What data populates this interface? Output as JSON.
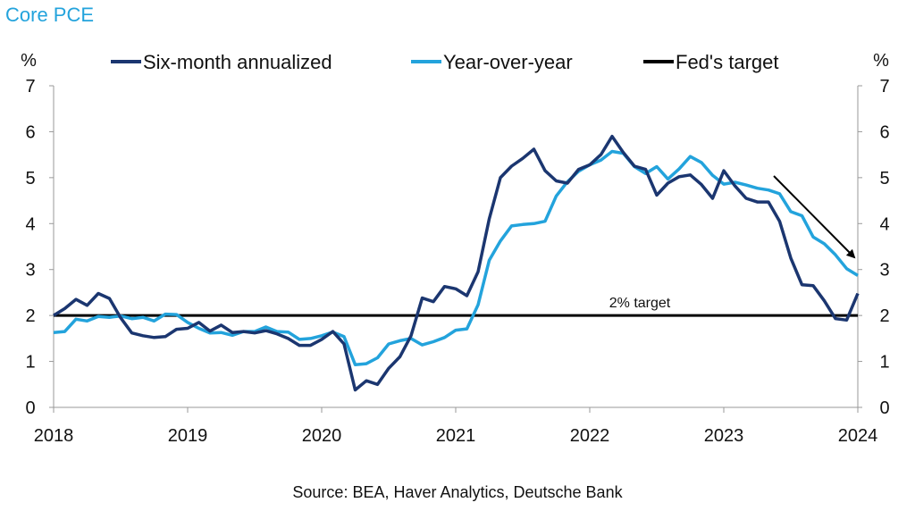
{
  "chart_data": {
    "type": "line",
    "title": "Core PCE",
    "ylabel_left": "%",
    "ylabel_right": "%",
    "ylim": [
      0,
      7
    ],
    "yticks": [
      "0",
      "1",
      "2",
      "3",
      "4",
      "5",
      "6",
      "7"
    ],
    "xlim": [
      "2018-01",
      "2024-01"
    ],
    "xticks": [
      "2018",
      "2019",
      "2020",
      "2021",
      "2022",
      "2023",
      "2024"
    ],
    "legend_placement": "top",
    "grid": false,
    "annotation": "2% target",
    "source": "Source: BEA, Haver Analytics, Deutsche Bank",
    "months": [
      "2018-01",
      "2018-02",
      "2018-03",
      "2018-04",
      "2018-05",
      "2018-06",
      "2018-07",
      "2018-08",
      "2018-09",
      "2018-10",
      "2018-11",
      "2018-12",
      "2019-01",
      "2019-02",
      "2019-03",
      "2019-04",
      "2019-05",
      "2019-06",
      "2019-07",
      "2019-08",
      "2019-09",
      "2019-10",
      "2019-11",
      "2019-12",
      "2020-01",
      "2020-02",
      "2020-03",
      "2020-04",
      "2020-05",
      "2020-06",
      "2020-07",
      "2020-08",
      "2020-09",
      "2020-10",
      "2020-11",
      "2020-12",
      "2021-01",
      "2021-02",
      "2021-03",
      "2021-04",
      "2021-05",
      "2021-06",
      "2021-07",
      "2021-08",
      "2021-09",
      "2021-10",
      "2021-11",
      "2021-12",
      "2022-01",
      "2022-02",
      "2022-03",
      "2022-04",
      "2022-05",
      "2022-06",
      "2022-07",
      "2022-08",
      "2022-09",
      "2022-10",
      "2022-11",
      "2022-12",
      "2023-01",
      "2023-02",
      "2023-03",
      "2023-04",
      "2023-05",
      "2023-06",
      "2023-07",
      "2023-08",
      "2023-09",
      "2023-10",
      "2023-11",
      "2023-12",
      "2024-01"
    ],
    "series": [
      {
        "name": "Six-month annualized",
        "color": "#1b3670",
        "values": [
          2.0,
          2.15,
          2.35,
          2.22,
          2.48,
          2.37,
          1.95,
          1.62,
          1.56,
          1.52,
          1.54,
          1.7,
          1.72,
          1.85,
          1.66,
          1.79,
          1.63,
          1.65,
          1.62,
          1.67,
          1.6,
          1.5,
          1.35,
          1.35,
          1.48,
          1.65,
          1.38,
          0.38,
          0.58,
          0.5,
          0.85,
          1.1,
          1.56,
          2.38,
          2.3,
          2.63,
          2.58,
          2.43,
          2.95,
          4.1,
          5.0,
          5.25,
          5.42,
          5.62,
          5.15,
          4.93,
          4.88,
          5.18,
          5.28,
          5.5,
          5.9,
          5.55,
          5.25,
          5.18,
          4.62,
          4.88,
          5.02,
          5.06,
          4.85,
          4.55,
          5.15,
          4.82,
          4.55,
          4.47,
          4.47,
          4.05,
          3.25,
          2.67,
          2.65,
          2.32,
          1.93,
          1.9,
          2.48
        ]
      },
      {
        "name": "Year-over-year",
        "color": "#23a3dc",
        "values": [
          1.63,
          1.65,
          1.92,
          1.88,
          1.98,
          1.96,
          1.99,
          1.93,
          1.96,
          1.88,
          2.03,
          2.02,
          1.85,
          1.72,
          1.62,
          1.63,
          1.57,
          1.65,
          1.65,
          1.75,
          1.65,
          1.64,
          1.48,
          1.5,
          1.56,
          1.64,
          1.54,
          0.93,
          0.95,
          1.08,
          1.38,
          1.45,
          1.5,
          1.36,
          1.43,
          1.52,
          1.68,
          1.71,
          2.23,
          3.2,
          3.62,
          3.95,
          3.98,
          4.0,
          4.05,
          4.6,
          4.91,
          5.14,
          5.28,
          5.38,
          5.57,
          5.53,
          5.24,
          5.09,
          5.24,
          4.97,
          5.19,
          5.46,
          5.33,
          5.05,
          4.86,
          4.9,
          4.84,
          4.77,
          4.73,
          4.65,
          4.26,
          4.17,
          3.71,
          3.56,
          3.32,
          3.02,
          2.87
        ]
      },
      {
        "name": "Fed's target",
        "color": "#000000",
        "values": [
          2,
          2
        ]
      }
    ]
  }
}
